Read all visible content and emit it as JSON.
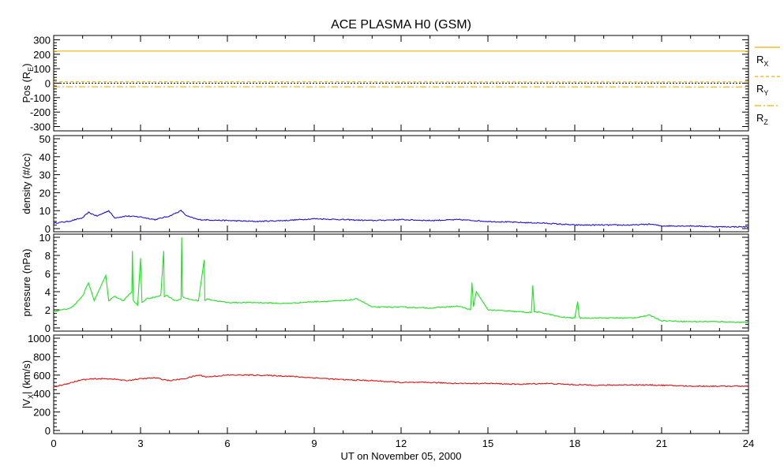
{
  "title": "ACE PLASMA H0 (GSM)",
  "x_axis": {
    "label": "UT on November 05, 2000",
    "range": [
      0,
      24
    ],
    "ticks": [
      0,
      3,
      6,
      9,
      12,
      15,
      18,
      21,
      24
    ],
    "tick_labels": [
      "0",
      "3",
      "6",
      "9",
      "12",
      "15",
      "18",
      "21",
      "24"
    ]
  },
  "legend": [
    {
      "base": "R",
      "sub": "X",
      "color": "#f0b000",
      "dash": "solid"
    },
    {
      "base": "R",
      "sub": "Y",
      "color": "#f0b000",
      "dash": "dashed"
    },
    {
      "base": "R",
      "sub": "Z",
      "color": "#f0b000",
      "dash": "dashdot"
    }
  ],
  "chart_data": [
    {
      "type": "line",
      "panel": "position",
      "ylabel": "Pos (R",
      "ylabel_sub": "E",
      "ylabel_tail": ")",
      "ylim": [
        -330,
        330
      ],
      "yticks": [
        -300,
        -200,
        -100,
        0,
        100,
        200,
        300
      ],
      "ytick_labels": [
        "-300",
        "-200",
        "-100",
        "0",
        "100",
        "200",
        "300"
      ],
      "zero_line": true,
      "series": [
        {
          "name": "RX",
          "color": "#f0b000",
          "dash": "solid",
          "x": [
            0,
            24
          ],
          "y": [
            222,
            222
          ]
        },
        {
          "name": "RY",
          "color": "#f0b000",
          "dash": "dashed",
          "x": [
            0,
            24
          ],
          "y": [
            10,
            9
          ]
        },
        {
          "name": "RZ",
          "color": "#f0b000",
          "dash": "dashdot",
          "x": [
            0,
            24
          ],
          "y": [
            -25,
            -26
          ]
        }
      ]
    },
    {
      "type": "line",
      "panel": "density",
      "ylabel": "density (#/cc)",
      "ylim": [
        0,
        50
      ],
      "yticks": [
        0,
        10,
        20,
        30,
        40,
        50
      ],
      "ytick_labels": [
        "0",
        "10",
        "20",
        "30",
        "40",
        "50"
      ],
      "series": [
        {
          "color": "#2010d0",
          "x": [
            0,
            0.5,
            1,
            1.2,
            1.5,
            1.9,
            2.1,
            2.5,
            3,
            3.5,
            4,
            4.4,
            4.6,
            5,
            6,
            7,
            8,
            9,
            10,
            11,
            12,
            13,
            14,
            15,
            16,
            17,
            18,
            19,
            20,
            20.6,
            21,
            22,
            23,
            24
          ],
          "y": [
            3,
            4,
            6,
            9,
            7,
            10,
            6,
            7,
            6.5,
            5,
            7,
            10,
            7,
            5,
            4.5,
            4,
            4.5,
            5.5,
            5,
            4.5,
            5,
            4.5,
            5,
            4,
            3.5,
            3,
            2,
            2,
            2,
            2.5,
            1.5,
            1.5,
            1,
            1
          ]
        }
      ]
    },
    {
      "type": "line",
      "panel": "pressure",
      "ylabel": "pressure (nPa)",
      "ylim": [
        0,
        10
      ],
      "yticks": [
        0,
        2,
        4,
        6,
        8,
        10
      ],
      "ytick_labels": [
        "0",
        "2",
        "4",
        "6",
        "8",
        "10"
      ],
      "series": [
        {
          "color": "#20e020",
          "x": [
            0,
            0.3,
            0.6,
            1,
            1.2,
            1.4,
            1.8,
            1.9,
            2.1,
            2.4,
            2.7,
            2.72,
            2.75,
            2.9,
            3.0,
            3.05,
            3.2,
            3.5,
            3.7,
            3.8,
            3.82,
            3.9,
            4.2,
            4.4,
            4.42,
            4.45,
            4.6,
            5.0,
            5.2,
            5.22,
            5.3,
            5.6,
            6,
            7,
            8,
            9,
            10,
            10.5,
            11,
            12,
            13,
            14,
            14.4,
            14.45,
            14.5,
            14.6,
            15,
            16,
            16.5,
            16.55,
            16.6,
            17,
            17.5,
            18,
            18.1,
            18.15,
            18.2,
            19,
            20,
            20.6,
            21,
            22,
            23,
            24
          ],
          "y": [
            1.8,
            2.0,
            2.2,
            3.5,
            5.0,
            3.0,
            5.8,
            3.0,
            3.5,
            3.0,
            4.0,
            8.5,
            3.0,
            2.5,
            7.7,
            2.8,
            3.2,
            3.4,
            3.6,
            8.5,
            3.5,
            3.6,
            3.0,
            3.2,
            10.0,
            3.5,
            3.2,
            3.0,
            7.5,
            3.0,
            3.2,
            3.0,
            2.8,
            2.8,
            2.7,
            2.9,
            3.0,
            3.2,
            2.3,
            2.3,
            2.2,
            2.4,
            2.0,
            5.0,
            2.3,
            4.0,
            2.0,
            1.8,
            1.7,
            4.7,
            1.8,
            1.6,
            1.2,
            1.1,
            2.9,
            1.2,
            1.1,
            1.1,
            1.1,
            1.4,
            0.8,
            0.7,
            0.7,
            0.6
          ]
        }
      ]
    },
    {
      "type": "line",
      "panel": "velocity",
      "ylabel": "|V",
      "ylabel_sub": "X",
      "ylabel_tail": "| (km/s)",
      "ylim": [
        0,
        1000
      ],
      "yticks": [
        0,
        200,
        400,
        600,
        800,
        1000
      ],
      "ytick_labels": [
        "0",
        "200",
        "400",
        "600",
        "800",
        "1000"
      ],
      "series": [
        {
          "color": "#e01010",
          "x": [
            0,
            0.5,
            1,
            1.5,
            2,
            2.5,
            3,
            3.5,
            4,
            4.5,
            5,
            5.3,
            6,
            7,
            8,
            9,
            10,
            11,
            12,
            13,
            14,
            15,
            16,
            17,
            18,
            19,
            20,
            21,
            22,
            23,
            24
          ],
          "y": [
            470,
            510,
            550,
            560,
            560,
            540,
            560,
            570,
            540,
            560,
            600,
            580,
            600,
            600,
            590,
            570,
            550,
            540,
            520,
            520,
            510,
            510,
            500,
            510,
            495,
            490,
            495,
            490,
            480,
            480,
            480
          ]
        }
      ]
    }
  ]
}
